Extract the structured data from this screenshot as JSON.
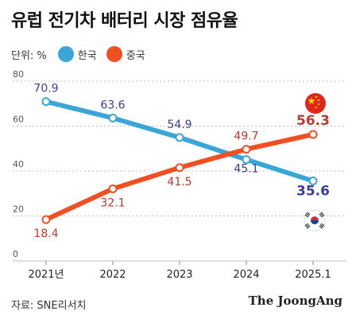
{
  "title": "유럽 전기차 배터리 시장 점유율",
  "unit_label": "단위: %",
  "source": "자료: SNE리서치",
  "brand": "The JoongAng",
  "colors": {
    "korea": "#3aa6d8",
    "china": "#f04e23",
    "korea_label": "#3b3f8f",
    "china_label": "#c0392b",
    "grid": "#bdbdbd"
  },
  "icons": {
    "china": "china-flag-icon",
    "korea": "korea-flag-icon"
  },
  "chart_data": {
    "type": "line",
    "title": "유럽 전기차 배터리 시장 점유율",
    "unit": "%",
    "x": [
      "2021년",
      "2022",
      "2023",
      "2024",
      "2025.1"
    ],
    "ylim": [
      0,
      80
    ],
    "yticks": [
      0,
      20,
      40,
      60,
      80
    ],
    "grid": true,
    "legend": "top-left",
    "series": [
      {
        "name": "한국",
        "color": "#3aa6d8",
        "values": [
          70.9,
          63.6,
          54.9,
          45.1,
          35.6
        ],
        "labels": [
          "70.9",
          "63.6",
          "54.9",
          "45.1",
          "35.6"
        ]
      },
      {
        "name": "중국",
        "color": "#f04e23",
        "values": [
          18.4,
          32.1,
          41.5,
          49.7,
          56.3
        ],
        "labels": [
          "18.4",
          "32.1",
          "41.5",
          "49.7",
          "56.3"
        ]
      }
    ]
  }
}
